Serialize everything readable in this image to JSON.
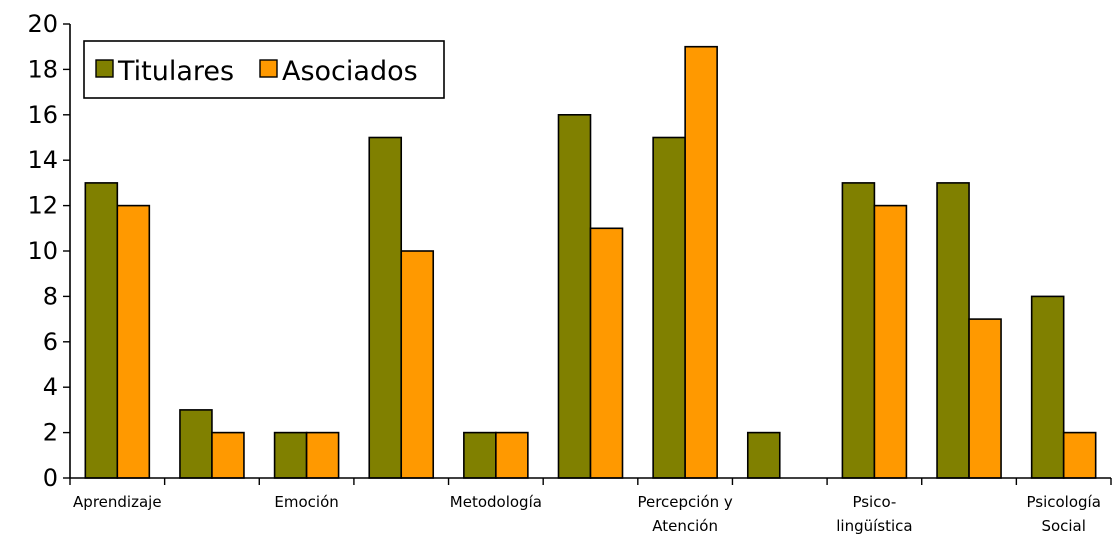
{
  "chart_data": {
    "type": "bar",
    "title": "",
    "xlabel": "",
    "ylabel": "",
    "ylim": [
      0,
      20
    ],
    "yticks": [
      0,
      2,
      4,
      6,
      8,
      10,
      12,
      14,
      16,
      18,
      20
    ],
    "grid": false,
    "legend_position": "top-left",
    "categories": [
      "Aprendizaje",
      "",
      "Emoción",
      "",
      "Metodología",
      "",
      "Percepción y Atención",
      "",
      "Psico-lingüística",
      "",
      "Psicología Social"
    ],
    "category_label_lines": [
      [
        "Aprendizaje"
      ],
      [],
      [
        "Emoción"
      ],
      [],
      [
        "Metodología"
      ],
      [],
      [
        "Percepción y",
        "Atención"
      ],
      [],
      [
        "Psico-",
        "lingüística"
      ],
      [],
      [
        "Psicología",
        "Social"
      ]
    ],
    "series": [
      {
        "name": "Titulares",
        "color": "#808000",
        "values": [
          13,
          3,
          2,
          15,
          2,
          16,
          15,
          2,
          13,
          13,
          8
        ]
      },
      {
        "name": "Asociados",
        "color": "#FF9900",
        "values": [
          12,
          2,
          2,
          10,
          2,
          11,
          19,
          0,
          12,
          7,
          2
        ]
      }
    ]
  }
}
